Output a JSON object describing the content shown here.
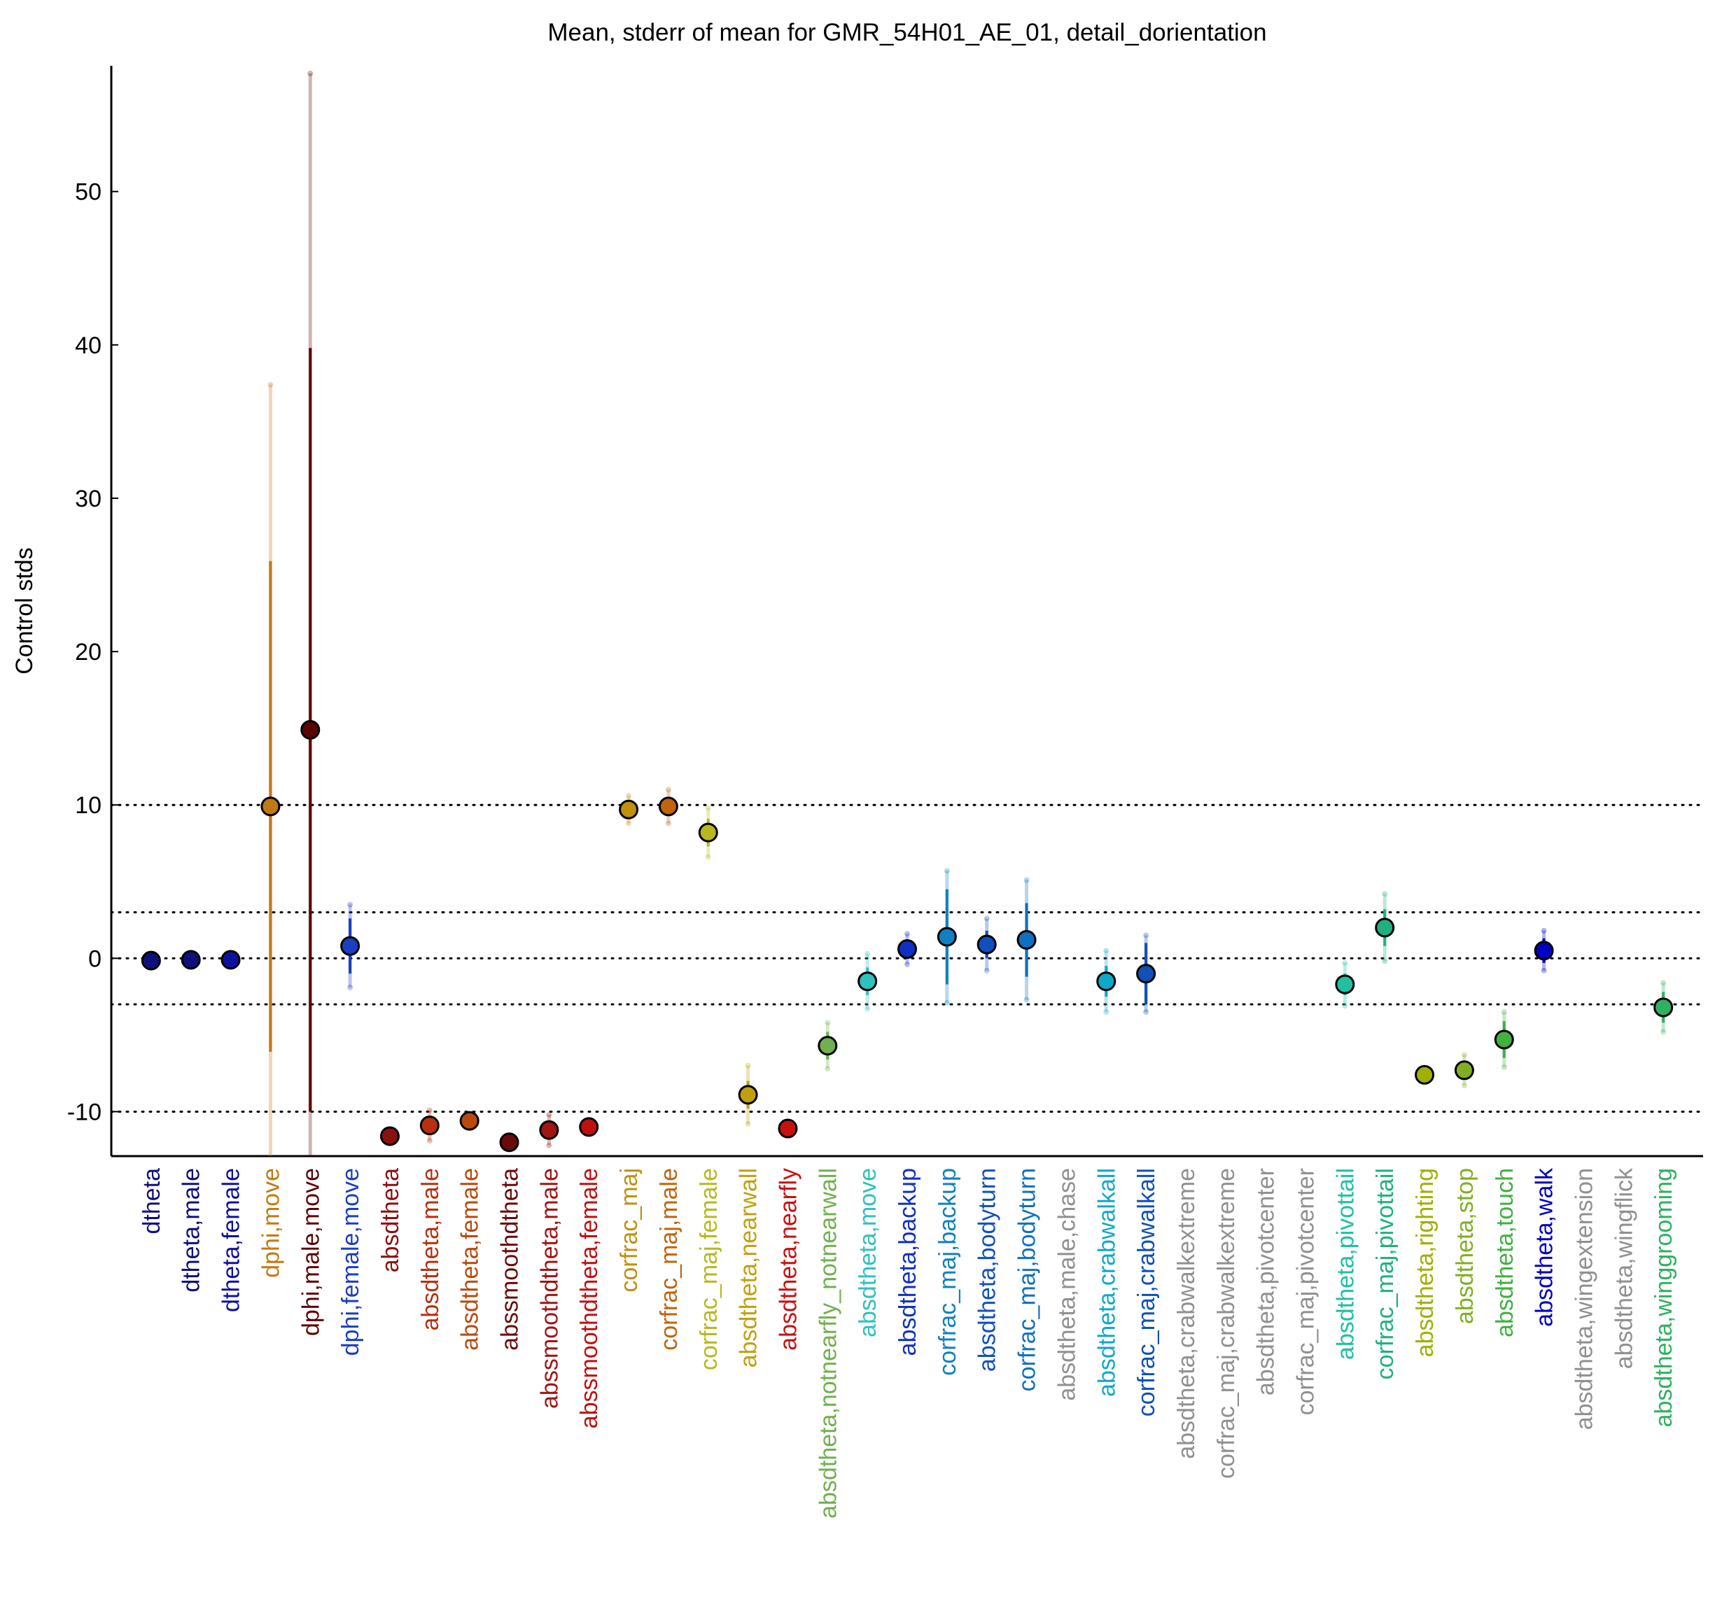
{
  "chart_data": {
    "type": "errorbar",
    "title": "Mean, stderr of mean for GMR_54H01_AE_01, detail_dorientation",
    "y_label": "Control stds",
    "categories": [
      "dtheta",
      "dtheta,male",
      "dtheta,female",
      "dphi,move",
      "dphi,male,move",
      "dphi,female,move",
      "absdtheta",
      "absdtheta,male",
      "absdtheta,female",
      "abssmoothdtheta",
      "abssmoothdtheta,male",
      "abssmoothdtheta,female",
      "corfrac_maj",
      "corfrac_maj,male",
      "corfrac_maj,female",
      "absdtheta,nearwall",
      "absdtheta,nearfly",
      "absdtheta,notnearfly_notnearwall",
      "absdtheta,move",
      "absdtheta,backup",
      "corfrac_maj,backup",
      "absdtheta,bodyturn",
      "corfrac_maj,bodyturn",
      "absdtheta,male,chase",
      "absdtheta,crabwalkall",
      "corfrac_maj,crabwalkall",
      "absdtheta,crabwalkextreme",
      "corfrac_maj,crabwalkextreme",
      "absdtheta,pivotcenter",
      "corfrac_maj,pivotcenter",
      "absdtheta,pivottail",
      "corfrac_maj,pivottail",
      "absdtheta,righting",
      "absdtheta,stop",
      "absdtheta,touch",
      "absdtheta,walk",
      "absdtheta,wingextension",
      "absdtheta,wingflick",
      "absdtheta,winggrooming"
    ],
    "values": [
      -0.15,
      -0.1,
      -0.1,
      9.9,
      14.9,
      0.8,
      -11.6,
      -10.9,
      -10.6,
      -12.0,
      -11.2,
      -11.0,
      9.7,
      9.9,
      8.2,
      -8.9,
      -11.1,
      -5.7,
      -1.5,
      0.6,
      1.4,
      0.9,
      1.2,
      null,
      -1.5,
      -1.0,
      null,
      null,
      null,
      null,
      -1.7,
      2.0,
      -7.6,
      -7.3,
      -5.3,
      0.5,
      null,
      null,
      -3.2
    ],
    "stderr": [
      0.1,
      0.1,
      0.1,
      16.0,
      24.9,
      1.8,
      0.1,
      0.2,
      0.2,
      0.1,
      0.2,
      0.1,
      0.3,
      0.4,
      0.9,
      0.9,
      0.1,
      0.9,
      0.9,
      0.5,
      3.1,
      0.9,
      2.4,
      null,
      1.0,
      2.0,
      null,
      null,
      null,
      null,
      0.7,
      1.2,
      0.1,
      0.6,
      1.2,
      0.8,
      null,
      null,
      1.0
    ],
    "spread": [
      0.1,
      0.1,
      0.1,
      27.5,
      42.8,
      2.7,
      0.1,
      1.0,
      0.3,
      0.1,
      1.0,
      0.1,
      0.9,
      1.1,
      1.6,
      1.9,
      0.1,
      1.5,
      1.8,
      1.0,
      4.3,
      1.7,
      3.9,
      null,
      2.0,
      2.5,
      null,
      null,
      null,
      null,
      1.4,
      2.2,
      0.1,
      1.0,
      1.8,
      1.3,
      null,
      null,
      1.6
    ],
    "colors": [
      "#10107a",
      "#10107a",
      "#1010a0",
      "#c07a15",
      "#5c0505",
      "#1a3fc0",
      "#8b1010",
      "#b83010",
      "#b84a10",
      "#6a0a0a",
      "#a01515",
      "#c01010",
      "#c0900e",
      "#c0640e",
      "#b8b820",
      "#c0a010",
      "#c81010",
      "#70b050",
      "#30c0c0",
      "#1030c0",
      "#1080c0",
      "#1050c0",
      "#1070c0",
      "#909090",
      "#10a8c8",
      "#1050b8",
      "#909090",
      "#909090",
      "#909090",
      "#909090",
      "#20c0a0",
      "#20b080",
      "#a0b000",
      "#80b020",
      "#40b040",
      "#0000c0",
      "#909090",
      "#909090",
      "#30b060"
    ],
    "ylim": [
      -12.9,
      58.2
    ],
    "yticks": [
      -10,
      0,
      10,
      20,
      30,
      40,
      50
    ],
    "hlines": [
      10,
      3,
      0,
      -3,
      -10
    ],
    "grid": false
  }
}
